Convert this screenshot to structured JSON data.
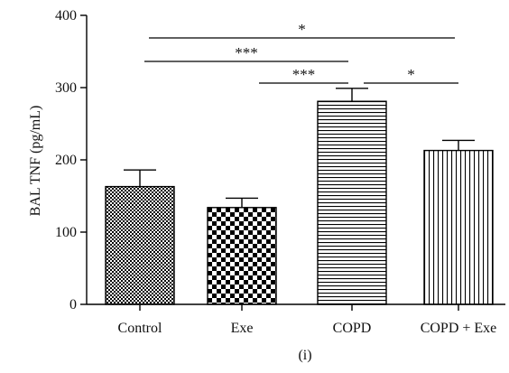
{
  "chart_data": {
    "type": "bar",
    "categories": [
      "Control",
      "Exe",
      "COPD",
      "COPD + Exe"
    ],
    "values": [
      163,
      134,
      281,
      213
    ],
    "errors": [
      23,
      13,
      18,
      14
    ],
    "patterns": [
      "checker-fine",
      "checker-coarse",
      "horizontal-lines",
      "vertical-lines"
    ],
    "ylabel": "BAL TNF (pg/mL)",
    "xlabel": "",
    "ylim": [
      0,
      400
    ],
    "yticks": [
      0,
      100,
      200,
      300,
      400
    ],
    "grid": false,
    "significance": [
      {
        "from": "Control",
        "to": "COPD + Exe",
        "label": "*"
      },
      {
        "from": "Control",
        "to": "COPD",
        "label": "***"
      },
      {
        "from": "Exe",
        "to": "COPD",
        "label": "***"
      },
      {
        "from": "COPD",
        "to": "COPD + Exe",
        "label": "*"
      }
    ],
    "caption": "(i)"
  }
}
